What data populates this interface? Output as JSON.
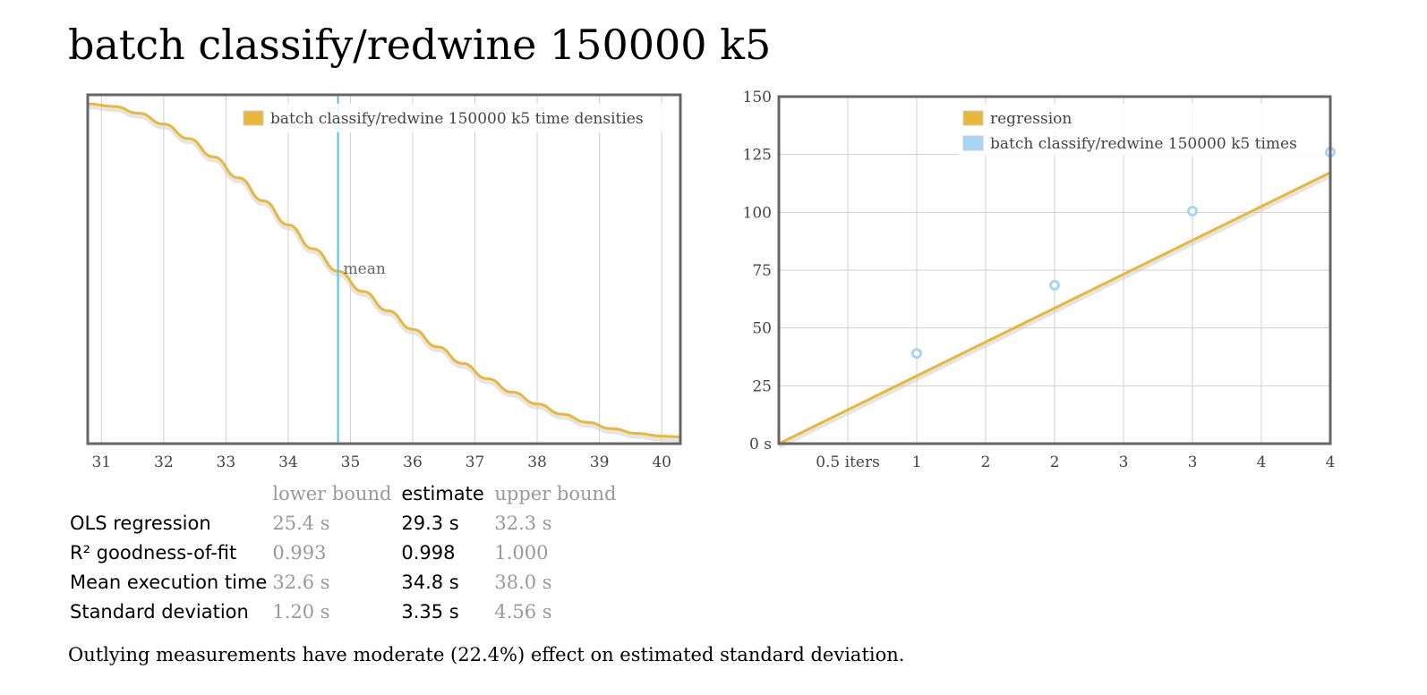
{
  "title": "batch classify/redwine 150000 k5",
  "colors": {
    "density": "#e8b83a",
    "mean_line": "#4fc3e8",
    "points": "#a8d4f5",
    "frame": "#666666",
    "grid": "#d0d0d0"
  },
  "chart_data": [
    {
      "type": "line",
      "name": "density",
      "title": "",
      "xlabel": "",
      "ylabel": "",
      "x_ticks": [
        "31",
        "32",
        "33",
        "34",
        "35",
        "36",
        "37",
        "38",
        "39",
        "40"
      ],
      "xlim": [
        30.78,
        40.3
      ],
      "legend": "top-right",
      "series": [
        {
          "name": "batch classify/redwine 150000 k5 time densities",
          "x": [
            30.78,
            31.2,
            31.6,
            32.0,
            32.4,
            32.8,
            33.2,
            33.6,
            34.0,
            34.4,
            34.8,
            35.2,
            35.6,
            36.0,
            36.4,
            36.8,
            37.2,
            37.6,
            38.0,
            38.4,
            38.8,
            39.2,
            39.6,
            40.0,
            40.3
          ],
          "y": [
            1.0,
            0.992,
            0.972,
            0.94,
            0.897,
            0.843,
            0.781,
            0.713,
            0.642,
            0.571,
            0.505,
            0.445,
            0.388,
            0.333,
            0.281,
            0.232,
            0.187,
            0.147,
            0.112,
            0.082,
            0.058,
            0.039,
            0.025,
            0.017,
            0.015
          ]
        }
      ],
      "annotations": [
        {
          "label": "mean",
          "x": 34.8
        }
      ],
      "grid": true
    },
    {
      "type": "scatter",
      "name": "regression",
      "title": "",
      "xlabel": "",
      "ylabel": "",
      "x_ticks": [
        "0.5 iters",
        "1",
        "2",
        "2",
        "3",
        "3",
        "4",
        "4"
      ],
      "y_ticks": [
        "0 s",
        "25",
        "50",
        "75",
        "100",
        "125",
        "150"
      ],
      "ylim": [
        0,
        150
      ],
      "xlim": [
        0,
        4
      ],
      "legend": "top-right",
      "series": [
        {
          "name": "regression",
          "kind": "line",
          "x": [
            0,
            4
          ],
          "y": [
            0,
            117.2
          ]
        },
        {
          "name": "batch classify/redwine 150000 k5 times",
          "kind": "points",
          "x": [
            1,
            2,
            3,
            4
          ],
          "y": [
            39,
            68.5,
            100.5,
            126
          ]
        }
      ],
      "grid": true
    }
  ],
  "stats": {
    "headers": {
      "lower": "lower bound",
      "estimate": "estimate",
      "upper": "upper bound"
    },
    "rows": [
      {
        "label": "OLS regression",
        "lower": "25.4 s",
        "estimate": "29.3 s",
        "upper": "32.3 s"
      },
      {
        "label": "R² goodness-of-fit",
        "lower": "0.993",
        "estimate": "0.998",
        "upper": "1.000"
      },
      {
        "label": "Mean execution time",
        "lower": "32.6 s",
        "estimate": "34.8 s",
        "upper": "38.0 s"
      },
      {
        "label": "Standard deviation",
        "lower": "1.20 s",
        "estimate": "3.35 s",
        "upper": "4.56 s"
      }
    ]
  },
  "footnote": "Outlying measurements have moderate (22.4%) effect on estimated standard deviation."
}
